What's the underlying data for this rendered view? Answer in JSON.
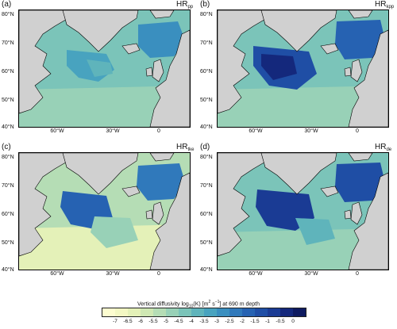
{
  "panels": [
    {
      "letter": "(a)",
      "title_main": "HR",
      "title_sub": "pp"
    },
    {
      "letter": "(b)",
      "title_main": "HR",
      "title_sub": "kpp"
    },
    {
      "letter": "(c)",
      "title_main": "HR",
      "title_sub": "tke"
    },
    {
      "letter": "(d)",
      "title_main": "HR",
      "title_sub": "de"
    }
  ],
  "lat_labels": [
    "80°N",
    "70°N",
    "60°N",
    "50°N",
    "40°N"
  ],
  "lon_labels": [
    "60°W",
    "30°W",
    "0"
  ],
  "colorbar": {
    "title_pre": "Vertical diffusivity log",
    "title_sub": "10",
    "title_mid": "(K) [m",
    "title_sup1": "2",
    "title_mid2": " s",
    "title_sup2": "−1",
    "title_post": "] at 690 m depth",
    "ticks": [
      "-7",
      "-6.5",
      "-6",
      "-5.5",
      "-5",
      "-4.5",
      "-4",
      "-3.5",
      "-3",
      "-2.5",
      "-2",
      "-1.5",
      "-1",
      "-0.5",
      "0"
    ],
    "colors": [
      "#fdfdd0",
      "#f3f8c3",
      "#e4f1b8",
      "#cfe8b3",
      "#b5ddb5",
      "#98d1b7",
      "#7bc4b9",
      "#5fb4bb",
      "#48a3bf",
      "#3a8fbf",
      "#3079bb",
      "#2662b2",
      "#1f4ea5",
      "#1a3b94",
      "#14287c",
      "#0e1a60"
    ]
  },
  "colors": {
    "land": "#d0d0d0",
    "coast": "#000000"
  }
}
